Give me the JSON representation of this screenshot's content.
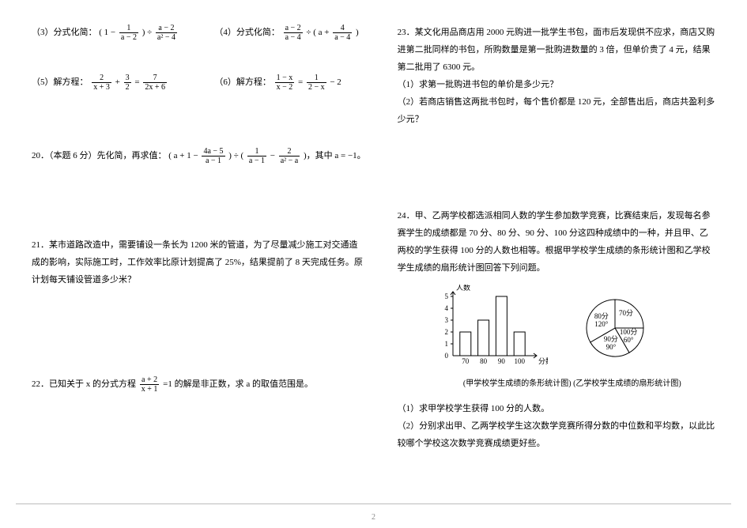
{
  "left": {
    "q3_label": "（3）分式化简：",
    "q3_expr_parts": [
      "( 1 −",
      "1",
      "a − 2",
      ") ÷",
      "a − 2",
      "a² − 4"
    ],
    "q4_label": "（4）分式化简：",
    "q4_expr_parts": [
      "a − 2",
      "a − 4",
      "÷ ( a +",
      "4",
      "a − 4",
      ")"
    ],
    "q5_label": "（5）解方程：",
    "q5_expr_parts": [
      "2",
      "x + 3",
      "+",
      "3",
      "2",
      "=",
      "7",
      "2x + 6"
    ],
    "q6_label": "（6）解方程：",
    "q6_expr_parts": [
      "1 − x",
      "x − 2",
      "=",
      "1",
      "2 − x",
      "− 2"
    ],
    "q20_label": "20．（本题 6 分）先化简，再求值：",
    "q20_expr_parts": [
      "( a + 1 −",
      "4a − 5",
      "a − 1",
      ") ÷ (",
      "1",
      "a − 1",
      "−",
      "2",
      "a² − a",
      ")，其中 a = −1。"
    ],
    "q21": "21．某市道路改造中，需要铺设一条长为 1200 米的管道，为了尽量减少施工对交通造成的影响，实际施工时，工作效率比原计划提高了 25%，结果提前了 8 天完成任务。原计划每天铺设管道多少米？",
    "q22_label": "22．已知关于 x 的分式方程",
    "q22_frac_num": "a + 2",
    "q22_frac_den": "x + 1",
    "q22_tail": "=1 的解是非正数，求 a 的取值范围是。"
  },
  "right": {
    "q23_p1": "23．某文化用品商店用 2000 元购进一批学生书包，面市后发现供不应求，商店又购进第二批同样的书包，所购数量是第一批购进数量的 3 倍，但单价贵了 4 元，结果第二批用了 6300 元。",
    "q23_s1": "（1）求第一批购进书包的单价是多少元？",
    "q23_s2": "（2）若商店销售这两批书包时，每个售价都是 120 元，全部售出后，商店共盈利多少元？",
    "q24_p1": "24．甲、乙两学校都选派相同人数的学生参加数学竞赛，比赛结束后，发现每名参赛学生的成绩都是 70 分、80 分、90 分、100 分这四种成绩中的一种，并且甲、乙两校的学生获得 100 分的人数也相等。根据甲学校学生成绩的条形统计图和乙学校学生成绩的扇形统计图回答下列问题。",
    "q24_caption": "(甲学校学生成绩的条形统计图) (乙学校学生成绩的扇形统计图)",
    "q24_s1": "（1）求甲学校学生获得 100 分的人数。",
    "q24_s2": "（2）分别求出甲、乙两学校学生这次数学竞赛所得分数的中位数和平均数，以此比较哪个学校这次数学竞赛成绩更好些。",
    "bar_chart": {
      "ylabel": "人数",
      "xlabel": "分数",
      "categories": [
        "70",
        "80",
        "90",
        "100"
      ],
      "values": [
        2,
        3,
        5,
        2
      ],
      "yticks": [
        1,
        2,
        3,
        4,
        5
      ],
      "bar_color": "#ffffff",
      "bar_border": "#000000",
      "axis_color": "#000000",
      "font_size": 9
    },
    "pie_chart": {
      "slices": [
        {
          "label": "70分",
          "angle": 90,
          "color": "#ffffff"
        },
        {
          "label": "100分",
          "angle": 60,
          "text": "60°",
          "color": "#ffffff"
        },
        {
          "label": "90分",
          "angle": 90,
          "text": "90°",
          "color": "#ffffff"
        },
        {
          "label": "80分",
          "angle": 120,
          "text": "120°",
          "color": "#ffffff"
        }
      ],
      "border": "#000000",
      "font_size": 9
    }
  },
  "page_number": "2"
}
